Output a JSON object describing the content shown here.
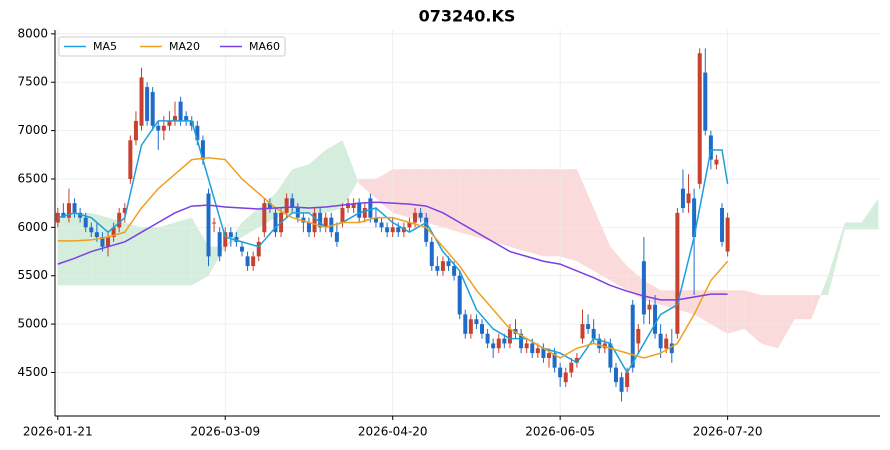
{
  "chart_data": {
    "type": "candlestick",
    "title": "073240.KS",
    "xlim": [
      -0.5,
      147.3
    ],
    "xticks": [
      {
        "value": 0,
        "label": "2026-01-21"
      },
      {
        "value": 30,
        "label": "2026-03-09"
      },
      {
        "value": 60,
        "label": "2026-04-20"
      },
      {
        "value": 90,
        "label": "2026-06-05"
      },
      {
        "value": 120,
        "label": "2026-07-20"
      }
    ],
    "ylim": [
      4050,
      8040
    ],
    "yticks": [
      4500,
      5000,
      5500,
      6000,
      6500,
      7000,
      7500,
      8000
    ],
    "grid": true,
    "legend": "upper left",
    "up_color": "#c8402e",
    "down_color": "#1f6cc8",
    "cloud_up_color": "#d4eddc",
    "cloud_down_color": "#fbdadb",
    "ohlc": [
      [
        6050,
        6200,
        6000,
        6150
      ],
      [
        6150,
        6250,
        6100,
        6100
      ],
      [
        6100,
        6400,
        6050,
        6250
      ],
      [
        6250,
        6300,
        6100,
        6150
      ],
      [
        6150,
        6200,
        6050,
        6100
      ],
      [
        6100,
        6150,
        5950,
        6000
      ],
      [
        6000,
        6050,
        5900,
        5950
      ],
      [
        5950,
        6050,
        5850,
        5900
      ],
      [
        5900,
        5950,
        5750,
        5800
      ],
      [
        5800,
        5950,
        5700,
        5900
      ],
      [
        5900,
        6050,
        5850,
        6000
      ],
      [
        6000,
        6200,
        5950,
        6150
      ],
      [
        6150,
        6250,
        6050,
        6200
      ],
      [
        6500,
        6950,
        6450,
        6900
      ],
      [
        6900,
        7200,
        6850,
        7100
      ],
      [
        7050,
        7650,
        7000,
        7550
      ],
      [
        7450,
        7500,
        7050,
        7100
      ],
      [
        7400,
        7450,
        7000,
        7050
      ],
      [
        7050,
        7100,
        6800,
        7000
      ],
      [
        7000,
        7150,
        6900,
        7050
      ],
      [
        7050,
        7200,
        7000,
        7100
      ],
      [
        7100,
        7300,
        7050,
        7150
      ],
      [
        7300,
        7350,
        7050,
        7100
      ],
      [
        7150,
        7200,
        7050,
        7100
      ],
      [
        7100,
        7150,
        7000,
        7050
      ],
      [
        7050,
        7100,
        6850,
        6900
      ],
      [
        6900,
        6950,
        6650,
        6700
      ],
      [
        6350,
        6400,
        5600,
        5700
      ],
      [
        6050,
        6100,
        5950,
        6050
      ],
      [
        5950,
        6000,
        5650,
        5700
      ],
      [
        5800,
        6000,
        5750,
        5950
      ],
      [
        5950,
        6000,
        5800,
        5900
      ],
      [
        5900,
        5950,
        5800,
        5850
      ],
      [
        5800,
        5850,
        5700,
        5750
      ],
      [
        5700,
        5750,
        5550,
        5600
      ],
      [
        5600,
        5750,
        5550,
        5700
      ],
      [
        5700,
        5900,
        5650,
        5850
      ],
      [
        5950,
        6300,
        5900,
        6250
      ],
      [
        6250,
        6300,
        6150,
        6200
      ],
      [
        6150,
        6200,
        5900,
        5950
      ],
      [
        5950,
        6200,
        5900,
        6150
      ],
      [
        6150,
        6350,
        6100,
        6300
      ],
      [
        6300,
        6350,
        6150,
        6200
      ],
      [
        6200,
        6250,
        6050,
        6100
      ],
      [
        6100,
        6150,
        5950,
        6050
      ],
      [
        6050,
        6100,
        5900,
        5950
      ],
      [
        5950,
        6200,
        5900,
        6150
      ],
      [
        6150,
        6200,
        5950,
        6000
      ],
      [
        6000,
        6150,
        5950,
        6100
      ],
      [
        6100,
        6150,
        5900,
        5950
      ],
      [
        5950,
        6050,
        5800,
        5850
      ],
      [
        6050,
        6250,
        6000,
        6200
      ],
      [
        6200,
        6300,
        6150,
        6250
      ],
      [
        6200,
        6300,
        6150,
        6250
      ],
      [
        6250,
        6300,
        6050,
        6100
      ],
      [
        6100,
        6250,
        6050,
        6200
      ],
      [
        6300,
        6350,
        6050,
        6100
      ],
      [
        6100,
        6200,
        6000,
        6050
      ],
      [
        6050,
        6100,
        5950,
        6000
      ],
      [
        6000,
        6050,
        5900,
        5950
      ],
      [
        5950,
        6100,
        5900,
        6000
      ],
      [
        6000,
        6050,
        5900,
        5950
      ],
      [
        5950,
        6050,
        5900,
        6000
      ],
      [
        6000,
        6100,
        5950,
        6050
      ],
      [
        6050,
        6200,
        6000,
        6150
      ],
      [
        6150,
        6200,
        6050,
        6100
      ],
      [
        6100,
        6150,
        5800,
        5850
      ],
      [
        5850,
        5900,
        5550,
        5600
      ],
      [
        5600,
        5700,
        5500,
        5550
      ],
      [
        5550,
        5700,
        5500,
        5650
      ],
      [
        5650,
        5700,
        5550,
        5600
      ],
      [
        5600,
        5650,
        5450,
        5500
      ],
      [
        5500,
        5550,
        5050,
        5100
      ],
      [
        5100,
        5150,
        4850,
        4900
      ],
      [
        4900,
        5100,
        4850,
        5050
      ],
      [
        5050,
        5100,
        4950,
        5000
      ],
      [
        5000,
        5050,
        4850,
        4900
      ],
      [
        4900,
        4950,
        4750,
        4800
      ],
      [
        4800,
        4850,
        4650,
        4750
      ],
      [
        4750,
        4900,
        4700,
        4850
      ],
      [
        4850,
        4900,
        4750,
        4800
      ],
      [
        4800,
        5000,
        4750,
        4950
      ],
      [
        4950,
        5050,
        4850,
        4900
      ],
      [
        4900,
        4950,
        4700,
        4750
      ],
      [
        4750,
        4850,
        4700,
        4800
      ],
      [
        4800,
        4850,
        4650,
        4700
      ],
      [
        4700,
        4800,
        4650,
        4750
      ],
      [
        4750,
        4800,
        4600,
        4650
      ],
      [
        4650,
        4750,
        4550,
        4700
      ],
      [
        4700,
        4750,
        4500,
        4550
      ],
      [
        4550,
        4600,
        4350,
        4450
      ],
      [
        4400,
        4550,
        4350,
        4500
      ],
      [
        4500,
        4650,
        4450,
        4600
      ],
      [
        4600,
        4700,
        4550,
        4650
      ],
      [
        4850,
        5150,
        4800,
        5000
      ],
      [
        5000,
        5100,
        4900,
        4950
      ],
      [
        4950,
        5050,
        4800,
        4850
      ],
      [
        4850,
        4900,
        4700,
        4750
      ],
      [
        4750,
        4850,
        4700,
        4800
      ],
      [
        4800,
        4850,
        4500,
        4550
      ],
      [
        4550,
        4600,
        4350,
        4400
      ],
      [
        4450,
        4500,
        4200,
        4300
      ],
      [
        4350,
        4550,
        4300,
        4500
      ],
      [
        5200,
        5250,
        4500,
        4550
      ],
      [
        4800,
        5000,
        4700,
        4950
      ],
      [
        5650,
        5900,
        5000,
        5100
      ],
      [
        5150,
        5250,
        5000,
        5200
      ],
      [
        5200,
        5300,
        4850,
        4900
      ],
      [
        4900,
        5000,
        4650,
        4750
      ],
      [
        4750,
        4900,
        4700,
        4850
      ],
      [
        4800,
        4950,
        4600,
        4700
      ],
      [
        4900,
        6200,
        4850,
        6150
      ],
      [
        6400,
        6600,
        6150,
        6200
      ],
      [
        6250,
        6550,
        6150,
        6350
      ],
      [
        6300,
        6400,
        5300,
        5900
      ],
      [
        6450,
        7850,
        6400,
        7800
      ],
      [
        7600,
        7850,
        6950,
        7000
      ],
      [
        6950,
        7000,
        6600,
        6700
      ],
      [
        6650,
        6750,
        6600,
        6700
      ],
      [
        6200,
        6250,
        5800,
        5850
      ],
      [
        5750,
        6150,
        5700,
        6100
      ]
    ],
    "series": [
      {
        "name": "MA5",
        "color": "#1ca0dc",
        "x": [
          0,
          3,
          6,
          9,
          12,
          15,
          18,
          21,
          24,
          27,
          30,
          33,
          36,
          39,
          42,
          45,
          48,
          51,
          54,
          57,
          60,
          63,
          66,
          69,
          72,
          75,
          78,
          81,
          84,
          87,
          90,
          93,
          96,
          99,
          102,
          105,
          108,
          111,
          114,
          117,
          119,
          120
        ],
        "values": [
          6100,
          6150,
          6100,
          5950,
          6100,
          6850,
          7100,
          7100,
          7100,
          6500,
          5900,
          5850,
          5800,
          6000,
          6150,
          6150,
          6000,
          6050,
          6150,
          6200,
          6050,
          5950,
          6050,
          5750,
          5550,
          5150,
          4950,
          4850,
          4850,
          4750,
          4700,
          4600,
          4850,
          4800,
          4500,
          4800,
          5100,
          5200,
          5900,
          6800,
          6800,
          6450
        ]
      },
      {
        "name": "MA20",
        "color": "#f0a020",
        "x": [
          0,
          3,
          6,
          9,
          12,
          15,
          18,
          21,
          24,
          27,
          30,
          33,
          36,
          39,
          42,
          45,
          48,
          51,
          54,
          57,
          60,
          63,
          66,
          69,
          72,
          75,
          78,
          81,
          84,
          87,
          90,
          93,
          96,
          99,
          102,
          105,
          108,
          111,
          114,
          117,
          120
        ],
        "values": [
          5860,
          5860,
          5870,
          5900,
          5950,
          6200,
          6400,
          6550,
          6700,
          6720,
          6700,
          6500,
          6350,
          6200,
          6100,
          6050,
          6000,
          6050,
          6050,
          6100,
          6100,
          6050,
          6000,
          5800,
          5600,
          5350,
          5150,
          4950,
          4850,
          4750,
          4650,
          4750,
          4800,
          4750,
          4700,
          4650,
          4700,
          4800,
          5100,
          5450,
          5650
        ]
      },
      {
        "name": "MA60",
        "color": "#7b3fe4",
        "x": [
          0,
          3,
          6,
          9,
          12,
          15,
          18,
          21,
          24,
          27,
          30,
          33,
          36,
          39,
          42,
          45,
          48,
          51,
          54,
          57,
          60,
          63,
          66,
          69,
          72,
          75,
          78,
          81,
          84,
          87,
          90,
          93,
          96,
          99,
          102,
          105,
          108,
          111,
          114,
          117,
          120
        ],
        "values": [
          5620,
          5680,
          5750,
          5800,
          5850,
          5950,
          6050,
          6150,
          6220,
          6230,
          6210,
          6200,
          6190,
          6200,
          6210,
          6200,
          6210,
          6230,
          6250,
          6260,
          6250,
          6240,
          6220,
          6150,
          6050,
          5950,
          5850,
          5750,
          5700,
          5650,
          5620,
          5550,
          5480,
          5400,
          5340,
          5290,
          5250,
          5250,
          5280,
          5310,
          5310
        ]
      }
    ],
    "cloud_x": [
      0,
      3,
      6,
      9,
      12,
      15,
      18,
      21,
      24,
      27,
      30,
      33,
      36,
      39,
      42,
      45,
      48,
      51,
      54,
      57,
      60,
      63,
      66,
      69,
      72,
      75,
      78,
      81,
      84,
      87,
      90,
      93,
      96,
      99,
      102,
      105,
      108,
      111,
      114,
      117,
      120,
      123,
      126,
      129,
      132,
      135,
      138,
      141,
      144,
      147
    ],
    "span_a": [
      6100,
      6150,
      6150,
      6100,
      6050,
      6000,
      6000,
      6050,
      6100,
      5800,
      5800,
      6050,
      6200,
      6350,
      6600,
      6650,
      6800,
      6900,
      6450,
      6300,
      6150,
      6100,
      6050,
      6000,
      5950,
      5900,
      5850,
      5800,
      5750,
      5700,
      5700,
      5650,
      5550,
      5450,
      5350,
      5250,
      5200,
      5150,
      5100,
      5000,
      4900,
      4950,
      4800,
      4750,
      5050,
      5050,
      5500,
      6050,
      6050,
      6300
    ],
    "span_b": [
      5400,
      5400,
      5400,
      5400,
      5400,
      5400,
      5400,
      5400,
      5400,
      5500,
      5800,
      5900,
      6000,
      6100,
      6150,
      6150,
      6150,
      6200,
      6500,
      6500,
      6600,
      6600,
      6600,
      6600,
      6600,
      6600,
      6600,
      6600,
      6600,
      6600,
      6600,
      6600,
      6200,
      5800,
      5600,
      5450,
      5350,
      5350,
      5350,
      5350,
      5350,
      5350,
      5300,
      5300,
      5300,
      5300,
      5300,
      5980,
      5980,
      5980
    ]
  }
}
